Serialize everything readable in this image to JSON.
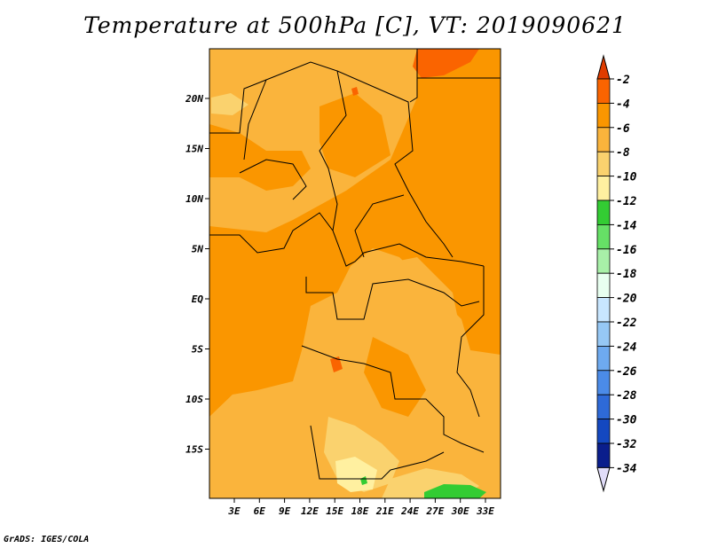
{
  "title": "Temperature at 500hPa [C], VT: 2019090621",
  "credit": "GrADS: IGES/COLA",
  "map": {
    "lat_ticks": [
      "20N",
      "15N",
      "10N",
      "5N",
      "EQ",
      "5S",
      "10S",
      "15S"
    ],
    "lon_ticks": [
      "3E",
      "6E",
      "9E",
      "12E",
      "15E",
      "18E",
      "21E",
      "24E",
      "27E",
      "30E",
      "33E"
    ]
  },
  "colorbar": {
    "labels": [
      "-2",
      "-4",
      "-6",
      "-8",
      "-10",
      "-12",
      "-14",
      "-16",
      "-18",
      "-20",
      "-22",
      "-24",
      "-26",
      "-28",
      "-30",
      "-32",
      "-34"
    ],
    "colors": [
      "#e03c00",
      "#fa6400",
      "#fa9600",
      "#fab43c",
      "#fad26e",
      "#fff0a0",
      "#33cc33",
      "#66e066",
      "#a8f0a8",
      "#e8fff0",
      "#c8e6ff",
      "#96c8f5",
      "#6eaaf0",
      "#4b8be8",
      "#2e6ad8",
      "#1448c0",
      "#0a1e8c",
      "#e0dcf8"
    ]
  }
}
